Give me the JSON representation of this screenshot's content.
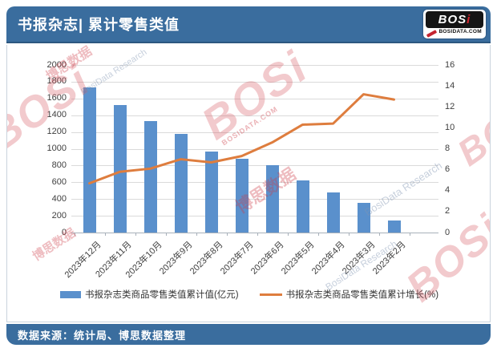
{
  "theme": {
    "header_bg": "#3A6D9E",
    "footer_bg": "#3A6D9E",
    "bar_color": "#5A90CC",
    "line_color": "#DE7D3E"
  },
  "header": {
    "title": "书报杂志| 累计零售类值",
    "logo": {
      "brand": "BOS",
      "brand_dot": "i",
      "domain": "BOSIDATA.COM"
    }
  },
  "watermark": {
    "brand": "BOSi",
    "cn": "博思数据",
    "en": "BosiData Research",
    "domain": "BOSIDATA.COM"
  },
  "chart_data": {
    "type": "bar",
    "subtype": "bar+line combo",
    "categories": [
      "2023年12月",
      "2023年11月",
      "2023年10月",
      "2023年9月",
      "2023年8月",
      "2023年7月",
      "2023年6月",
      "2023年5月",
      "2023年4月",
      "2023年3月",
      "2023年2月"
    ],
    "series": [
      {
        "name": "书报杂志类商品零售类值累计值(亿元)",
        "type": "bar",
        "axis": "left",
        "color": "#5A90CC",
        "values": [
          1730,
          1520,
          1330,
          1180,
          970,
          880,
          800,
          620,
          480,
          350,
          145
        ]
      },
      {
        "name": "书报杂志类商品零售类值累计增长(%)",
        "type": "line",
        "axis": "right",
        "color": "#DE7D3E",
        "values": [
          4.7,
          5.8,
          6.1,
          7.0,
          6.7,
          7.3,
          8.6,
          10.3,
          10.4,
          13.2,
          12.7
        ]
      }
    ],
    "left_axis": {
      "min": 0,
      "max": 2000,
      "step": 200
    },
    "right_axis": {
      "min": 0,
      "max": 16,
      "step": 2
    },
    "grid": true,
    "legend_position": "bottom"
  },
  "footer": {
    "source": "数据来源：统计局、博思数据整理"
  }
}
